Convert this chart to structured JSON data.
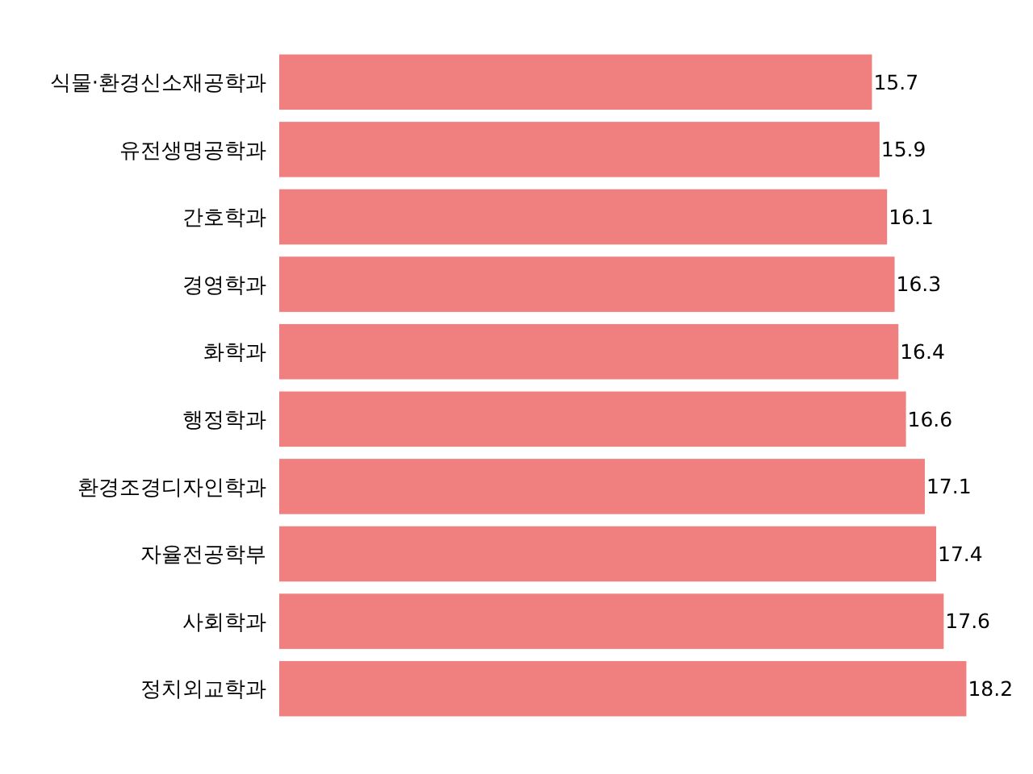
{
  "chart_data": {
    "type": "bar",
    "orientation": "horizontal",
    "categories": [
      "식물·환경신소재공학과",
      "유전생명공학과",
      "간호학과",
      "경영학과",
      "화학과",
      "행정학과",
      "환경조경디자인학과",
      "자율전공학부",
      "사회학과",
      "정치외교학과"
    ],
    "values": [
      15.7,
      15.9,
      16.1,
      16.3,
      16.4,
      16.6,
      17.1,
      17.4,
      17.6,
      18.2
    ],
    "color": "#f08080",
    "data_labels": true
  }
}
